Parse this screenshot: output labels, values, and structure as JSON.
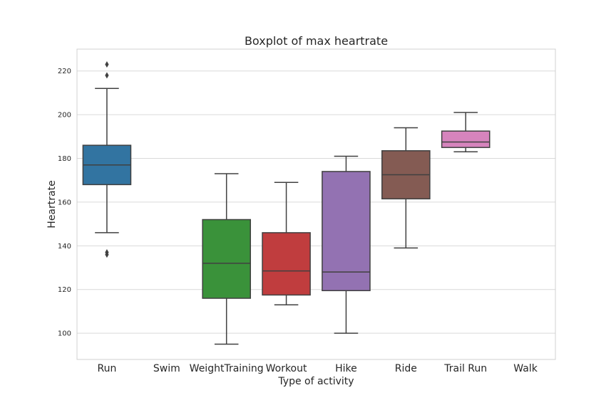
{
  "chart_data": {
    "type": "box",
    "title": "Boxplot of max heartrate",
    "xlabel": "Type of activity",
    "ylabel": "Heartrate",
    "ylim": [
      88,
      230
    ],
    "yticks": [
      100,
      120,
      140,
      160,
      180,
      200,
      220
    ],
    "grid": true,
    "categories": [
      "Run",
      "Swim",
      "WeightTraining",
      "Workout",
      "Hike",
      "Ride",
      "Trail Run",
      "Walk"
    ],
    "series": [
      {
        "category": "Run",
        "whisker_low": 146,
        "q1": 168,
        "median": 177,
        "q3": 186,
        "whisker_high": 212,
        "outliers": [
          136,
          137,
          218,
          223
        ],
        "color": "#3274a1"
      },
      {
        "category": "Swim",
        "empty": true
      },
      {
        "category": "WeightTraining",
        "whisker_low": 95,
        "q1": 116,
        "median": 132,
        "q3": 152,
        "whisker_high": 173,
        "outliers": [],
        "color": "#3a923a"
      },
      {
        "category": "Workout",
        "whisker_low": 113,
        "q1": 117.5,
        "median": 128.5,
        "q3": 146,
        "whisker_high": 169,
        "outliers": [],
        "color": "#c03d3e"
      },
      {
        "category": "Hike",
        "whisker_low": 100,
        "q1": 119.5,
        "median": 128,
        "q3": 174,
        "whisker_high": 181,
        "outliers": [],
        "color": "#9372b2"
      },
      {
        "category": "Ride",
        "whisker_low": 139,
        "q1": 161.5,
        "median": 172.5,
        "q3": 183.5,
        "whisker_high": 194,
        "outliers": [],
        "color": "#845b53"
      },
      {
        "category": "Trail Run",
        "whisker_low": 183,
        "q1": 185,
        "median": 187.5,
        "q3": 192.5,
        "whisker_high": 201,
        "outliers": [],
        "color": "#d684bd"
      },
      {
        "category": "Walk",
        "empty": true
      }
    ],
    "colors": {
      "grid": "#d9d9d9",
      "frame": "#d0d0d0",
      "line": "#404040"
    }
  }
}
